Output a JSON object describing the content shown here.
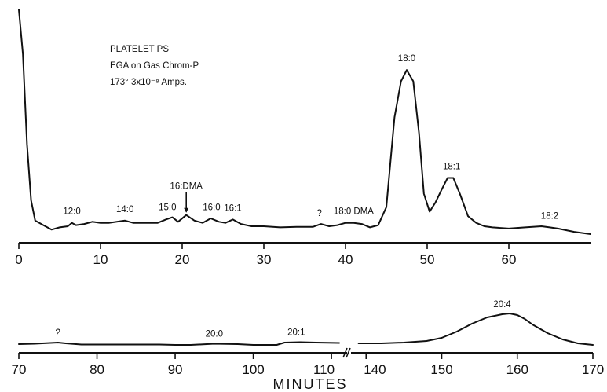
{
  "chart_data": {
    "type": "line",
    "title_lines": [
      "PLATELET PS",
      "EGA on Gas Chrom-P",
      "173° 3x10⁻⁸ Amps."
    ],
    "xlabel": "MINUTES",
    "ylabel": "",
    "grid": false,
    "panels": [
      {
        "xlim": [
          0,
          70
        ],
        "xticks": [
          0,
          10,
          20,
          30,
          40,
          50,
          60
        ],
        "series": [
          {
            "x": [
              0,
              0.5,
              1,
              1.5,
              2,
              3,
              4,
              5,
              6,
              6.5,
              7,
              8,
              9,
              10,
              11,
              12,
              13,
              14,
              15,
              16,
              17,
              18,
              18.8,
              19.5,
              20.5,
              21.5,
              22.5,
              23.5,
              24.5,
              25.3,
              26.2,
              27.2,
              28.5,
              30,
              32,
              34,
              36,
              37,
              38,
              39,
              40,
              41,
              42,
              43,
              44,
              45,
              46,
              46.8,
              47.5,
              48.3,
              49,
              49.6,
              50.3,
              51,
              51.8,
              52.5,
              53.2,
              54,
              55,
              56,
              57,
              58,
              60,
              62,
              64,
              65,
              66,
              68,
              70
            ],
            "y": [
              100,
              80,
              40,
              15,
              6,
              4,
              2,
              3,
              3.5,
              5,
              4,
              4.5,
              5.5,
              5,
              5,
              5.5,
              6,
              5,
              5,
              5,
              5,
              6.5,
              7.5,
              5.5,
              8.5,
              6,
              5,
              7,
              5.5,
              5,
              6.5,
              4.5,
              3.5,
              3.5,
              3,
              3.2,
              3.2,
              4.5,
              3.5,
              4,
              5,
              5,
              4.5,
              3,
              4,
              12,
              52,
              68,
              73,
              68,
              45,
              18,
              10,
              14,
              20,
              25,
              25,
              18,
              8,
              5,
              3.5,
              3,
              2.5,
              3,
              3.5,
              3,
              2.5,
              1,
              0
            ]
          }
        ]
      },
      {
        "xlim": [
          70,
          170
        ],
        "xbreak": [
          112,
          138
        ],
        "xticks": [
          70,
          80,
          90,
          100,
          110,
          140,
          150,
          160,
          170
        ],
        "series": [
          {
            "x": [
              70,
              72,
              74,
              75,
              76,
              78,
              80,
              85,
              88,
              90,
              92,
              95,
              98,
              100,
              102,
              103,
              104,
              106,
              108,
              111,
              139,
              142,
              145,
              148,
              150,
              152,
              154,
              156,
              158,
              159,
              160,
              161,
              162,
              164,
              166,
              168,
              170
            ],
            "y": [
              3,
              3.5,
              4.5,
              5,
              4,
              2.5,
              2.5,
              2.5,
              2.5,
              2,
              2,
              3.5,
              3,
              2,
              2,
              2,
              5,
              5.5,
              5,
              4.5,
              4,
              4,
              5,
              7,
              11,
              19,
              29,
              37,
              41,
              42,
              40,
              35,
              28,
              17,
              9,
              4,
              2
            ]
          }
        ]
      }
    ],
    "annotations": [
      {
        "text": "12:0",
        "x": 6.5
      },
      {
        "text": "14:0",
        "x": 13
      },
      {
        "text": "15:0",
        "x": 18.2
      },
      {
        "text": "16:DMA",
        "x": 20.5
      },
      {
        "text": "16:0",
        "x": 23.6
      },
      {
        "text": "16:1",
        "x": 26.2
      },
      {
        "text": "?",
        "x": 36.8
      },
      {
        "text": "18:0 DMA",
        "x": 41
      },
      {
        "text": "18:0",
        "x": 47.5
      },
      {
        "text": "18:1",
        "x": 53
      },
      {
        "text": "18:2",
        "x": 65
      },
      {
        "text": "?",
        "x": 75
      },
      {
        "text": "20:0",
        "x": 95
      },
      {
        "text": "20:1",
        "x": 105.5
      },
      {
        "text": "20:4",
        "x": 158
      }
    ]
  }
}
